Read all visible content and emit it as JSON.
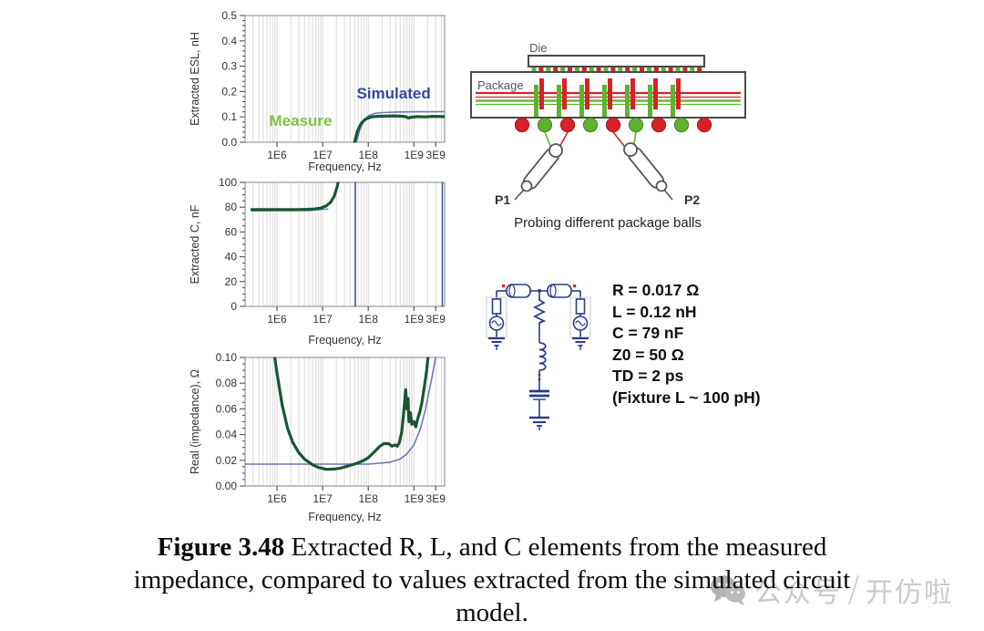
{
  "colors": {
    "accent_red": "#d92127",
    "accent_green": "#5fb22f",
    "navy": "#2b3a8e",
    "outline": "#4a4a4a",
    "measured_green": "#1a5632",
    "simulated_blue": "#6b79b8",
    "legend_blue": "#32499b",
    "legend_green": "#7fc341",
    "grid": "#dadada",
    "watermark_grey": "#bdbdbd"
  },
  "chart_data": [
    {
      "type": "line",
      "xscale": "log",
      "xlabel": "Frequency, Hz",
      "ylabel": "Extracted ESL, nH",
      "xlim": [
        200000.0,
        4700000000.0
      ],
      "ylim": [
        0,
        0.5
      ],
      "grid": "minor-vertical",
      "legend_position": "inline",
      "xticks": [
        {
          "v": 1000000.0,
          "label": "1E6"
        },
        {
          "v": 10000000.0,
          "label": "1E7"
        },
        {
          "v": 100000000.0,
          "label": "1E8"
        },
        {
          "v": 1000000000.0,
          "label": "1E9"
        },
        {
          "v": 3000000000.0,
          "label": "3E9"
        }
      ],
      "yticks": [
        {
          "v": 0,
          "label": "0.0"
        },
        {
          "v": 0.1,
          "label": "0.1"
        },
        {
          "v": 0.2,
          "label": "0.2"
        },
        {
          "v": 0.3,
          "label": "0.3"
        },
        {
          "v": 0.4,
          "label": "0.4"
        },
        {
          "v": 0.5,
          "label": "0.5"
        }
      ],
      "y_minor_divisions": 5,
      "series": [
        {
          "name": "Simulated",
          "color": "#6b79b8",
          "width": 1.6,
          "points": [
            [
              55000000.0,
              0
            ],
            [
              65000000.0,
              0.05
            ],
            [
              80000000.0,
              0.085
            ],
            [
              100000000.0,
              0.104
            ],
            [
              140000000.0,
              0.114
            ],
            [
              200000000.0,
              0.117
            ],
            [
              400000000.0,
              0.119
            ],
            [
              1000000000.0,
              0.12
            ],
            [
              2000000000.0,
              0.12
            ],
            [
              4500000000.0,
              0.121
            ]
          ]
        },
        {
          "name": "Measure",
          "color": "#1a5632",
          "width": 3.2,
          "points": [
            [
              50000000.0,
              0
            ],
            [
              58000000.0,
              0.045
            ],
            [
              70000000.0,
              0.075
            ],
            [
              85000000.0,
              0.09
            ],
            [
              110000000.0,
              0.099
            ],
            [
              150000000.0,
              0.102
            ],
            [
              220000000.0,
              0.103
            ],
            [
              350000000.0,
              0.104
            ],
            [
              500000000.0,
              0.103
            ],
            [
              650000000.0,
              0.101
            ],
            [
              750000000.0,
              0.096
            ],
            [
              900000000.0,
              0.099
            ],
            [
              1200000000.0,
              0.101
            ],
            [
              1800000000.0,
              0.1
            ],
            [
              2600000000.0,
              0.102
            ],
            [
              4500000000.0,
              0.101
            ]
          ]
        }
      ],
      "annotations": [
        {
          "text": "Simulated",
          "x": 360000000.0,
          "y": 0.172,
          "color": "#32499b",
          "size": 17
        },
        {
          "text": "Measure",
          "x": 3300000.0,
          "y": 0.065,
          "color": "#7fc341",
          "size": 17
        }
      ]
    },
    {
      "type": "line",
      "xscale": "log",
      "xlabel": "Frequency, Hz",
      "ylabel": "Extracted C, nF",
      "xlim": [
        200000.0,
        4700000000.0
      ],
      "ylim": [
        0,
        100
      ],
      "grid": "minor-vertical",
      "xticks": [
        {
          "v": 1000000.0,
          "label": "1E6"
        },
        {
          "v": 10000000.0,
          "label": "1E7"
        },
        {
          "v": 100000000.0,
          "label": "1E8"
        },
        {
          "v": 1000000000.0,
          "label": "1E9"
        },
        {
          "v": 3000000000.0,
          "label": "3E9"
        }
      ],
      "yticks": [
        {
          "v": 0,
          "label": "0"
        },
        {
          "v": 20,
          "label": "20"
        },
        {
          "v": 40,
          "label": "40"
        },
        {
          "v": 60,
          "label": "60"
        },
        {
          "v": 80,
          "label": "80"
        },
        {
          "v": 100,
          "label": "100"
        }
      ],
      "y_minor_divisions": 4,
      "series": [
        {
          "name": "Simulated flat",
          "color": "#6b79b8",
          "width": 1.4,
          "points": [
            [
              280000.0,
              77
            ],
            [
              5000000.0,
              77.3
            ],
            [
              13000000.0,
              78.5
            ]
          ]
        },
        {
          "name": "Measure",
          "color": "#1a5632",
          "width": 3.2,
          "points": [
            [
              280000.0,
              78
            ],
            [
              1000000.0,
              78
            ],
            [
              3000000.0,
              78
            ],
            [
              6000000.0,
              78.4
            ],
            [
              9000000.0,
              79.3
            ],
            [
              12000000.0,
              81
            ],
            [
              15000000.0,
              84
            ],
            [
              18000000.0,
              89
            ],
            [
              21000000.0,
              97
            ],
            [
              23500000.0,
              107
            ]
          ]
        },
        {
          "name": "Simulated resonance asymptote",
          "color": "#4056a5",
          "width": 1.6,
          "points": [
            [
              52000000.0,
              0
            ],
            [
              52000000.0,
              100
            ]
          ]
        },
        {
          "name": "Simulated high-frequency asymptote",
          "color": "#4056a5",
          "width": 1.4,
          "points": [
            [
              4200000000.0,
              0
            ],
            [
              4200000000.0,
              100
            ]
          ]
        }
      ],
      "annotations": []
    },
    {
      "type": "line",
      "xscale": "log",
      "xlabel": "Frequency, Hz",
      "ylabel": "Real (impedance), Ω",
      "xlim": [
        200000.0,
        4700000000.0
      ],
      "ylim": [
        0,
        0.1
      ],
      "grid": "minor-vertical",
      "xticks": [
        {
          "v": 1000000.0,
          "label": "1E6"
        },
        {
          "v": 10000000.0,
          "label": "1E7"
        },
        {
          "v": 100000000.0,
          "label": "1E8"
        },
        {
          "v": 1000000000.0,
          "label": "1E9"
        },
        {
          "v": 3000000000.0,
          "label": "3E9"
        }
      ],
      "yticks": [
        {
          "v": 0,
          "label": "0.00"
        },
        {
          "v": 0.02,
          "label": "0.02"
        },
        {
          "v": 0.04,
          "label": "0.04"
        },
        {
          "v": 0.06,
          "label": "0.06"
        },
        {
          "v": 0.08,
          "label": "0.08"
        },
        {
          "v": 0.1,
          "label": "0.10"
        }
      ],
      "y_minor_divisions": 4,
      "series": [
        {
          "name": "Simulated",
          "color": "#6b79b8",
          "width": 1.6,
          "points": [
            [
              200000.0,
              0.017
            ],
            [
              100000000.0,
              0.017
            ],
            [
              300000000.0,
              0.0185
            ],
            [
              500000000.0,
              0.021
            ],
            [
              700000000.0,
              0.025
            ],
            [
              1000000000.0,
              0.032
            ],
            [
              1400000000.0,
              0.045
            ],
            [
              1800000000.0,
              0.06
            ],
            [
              2400000000.0,
              0.082
            ],
            [
              3000000000.0,
              0.1
            ],
            [
              3600000000.0,
              0.12
            ]
          ]
        },
        {
          "name": "Measure",
          "color": "#1a5632",
          "width": 3.2,
          "points": [
            [
              750000.0,
              0.12
            ],
            [
              850000.0,
              0.105
            ],
            [
              1000000.0,
              0.088
            ],
            [
              1300000.0,
              0.063
            ],
            [
              1700000.0,
              0.045
            ],
            [
              2200000.0,
              0.034
            ],
            [
              3000000.0,
              0.026
            ],
            [
              4000000.0,
              0.021
            ],
            [
              6000000.0,
              0.0165
            ],
            [
              8000000.0,
              0.0145
            ],
            [
              12000000.0,
              0.013
            ],
            [
              18000000.0,
              0.0132
            ],
            [
              25000000.0,
              0.014
            ],
            [
              40000000.0,
              0.016
            ],
            [
              60000000.0,
              0.018
            ],
            [
              80000000.0,
              0.02
            ],
            [
              100000000.0,
              0.022
            ],
            [
              140000000.0,
              0.027
            ],
            [
              180000000.0,
              0.031
            ],
            [
              220000000.0,
              0.033
            ],
            [
              280000000.0,
              0.033
            ],
            [
              330000000.0,
              0.031
            ],
            [
              380000000.0,
              0.032
            ],
            [
              430000000.0,
              0.031
            ],
            [
              480000000.0,
              0.034
            ],
            [
              540000000.0,
              0.042
            ],
            [
              600000000.0,
              0.058
            ],
            [
              660000000.0,
              0.075
            ],
            [
              700000000.0,
              0.06
            ],
            [
              740000000.0,
              0.068
            ],
            [
              780000000.0,
              0.05
            ],
            [
              840000000.0,
              0.057
            ],
            [
              900000000.0,
              0.048
            ],
            [
              1000000000.0,
              0.05
            ],
            [
              1100000000.0,
              0.046
            ],
            [
              1200000000.0,
              0.052
            ],
            [
              1350000000.0,
              0.058
            ],
            [
              1500000000.0,
              0.065
            ],
            [
              1700000000.0,
              0.078
            ],
            [
              1900000000.0,
              0.09
            ],
            [
              2100000000.0,
              0.105
            ],
            [
              2300000000.0,
              0.12
            ]
          ]
        }
      ],
      "annotations": []
    }
  ],
  "package_diagram": {
    "die_label": "Die",
    "package_label": "Package",
    "probe1_label": "P1",
    "probe2_label": "P2",
    "caption": "Probing different package balls",
    "ball_colors": [
      "red",
      "green",
      "red",
      "green",
      "red",
      "green",
      "red",
      "green",
      "red"
    ]
  },
  "circuit": {
    "values": [
      "R = 0.017 Ω",
      "L = 0.12 nH",
      "C = 79 nF",
      "Z0 = 50 Ω",
      "TD = 2 ps",
      "(Fixture L ~ 100 pH)"
    ]
  },
  "caption": {
    "prefix": "Figure 3.48",
    "line1_rest": " Extracted R, L, and C elements from the measured",
    "line2": "impedance, compared to values extracted from the simulated circuit",
    "line3": "model."
  },
  "watermark": {
    "text_left": "公众号",
    "text_right": "开仿啦"
  }
}
